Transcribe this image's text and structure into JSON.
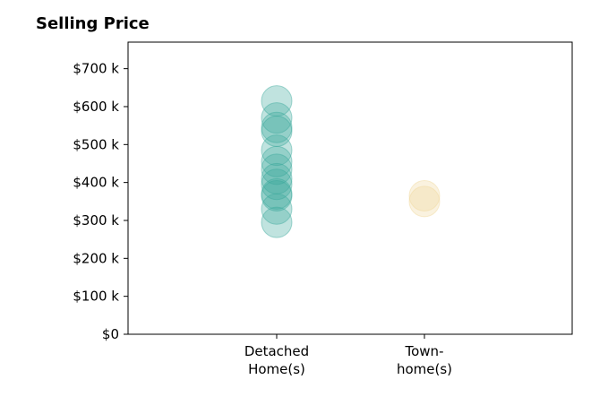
{
  "chart_data": {
    "type": "scatter",
    "title": "Selling Price",
    "categories": [
      "Detached\nHome(s)",
      "Town-\nhome(s)"
    ],
    "y_ticks": [
      "$0",
      "$100 k",
      "$200 k",
      "$300 k",
      "$400 k",
      "$500 k",
      "$600 k",
      "$700 k"
    ],
    "ylim": [
      0,
      770
    ],
    "grid": false,
    "legend": "none",
    "colors": {
      "detached": "#3aa89b",
      "townhome": "#f0d79a"
    },
    "series": [
      {
        "category": "Detached\nHome(s)",
        "color": "#3aa89b",
        "values": [
          615,
          570,
          545,
          535,
          485,
          455,
          435,
          410,
          395,
          370,
          365,
          330,
          295
        ]
      },
      {
        "category": "Town-\nhome(s)",
        "color": "#f0d79a",
        "values": [
          365,
          350
        ]
      }
    ]
  }
}
